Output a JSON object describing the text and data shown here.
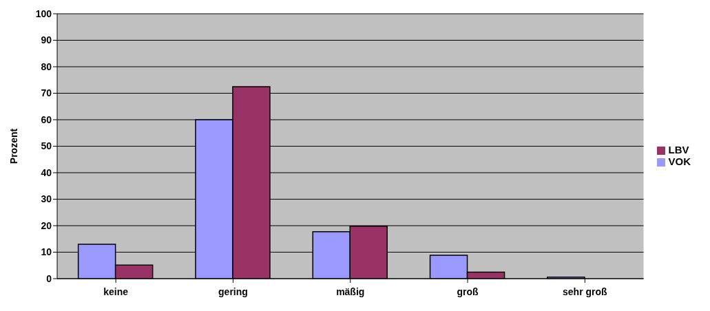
{
  "chart_data": {
    "type": "bar",
    "ylabel": "Prozent",
    "categories": [
      "keine",
      "gering",
      "mäßig",
      "groß",
      "sehr groß"
    ],
    "series": [
      {
        "name": "VOK",
        "color": "#9999ff",
        "values": [
          13,
          60,
          17.7,
          8.8,
          0.6
        ]
      },
      {
        "name": "LBV",
        "color": "#993366",
        "values": [
          5.1,
          72.5,
          19.8,
          2.5,
          0
        ]
      }
    ],
    "ylim": [
      0,
      100
    ],
    "yticks": [
      0,
      10,
      20,
      30,
      40,
      50,
      60,
      70,
      80,
      90,
      100
    ],
    "grid": "y",
    "legend": "right"
  }
}
